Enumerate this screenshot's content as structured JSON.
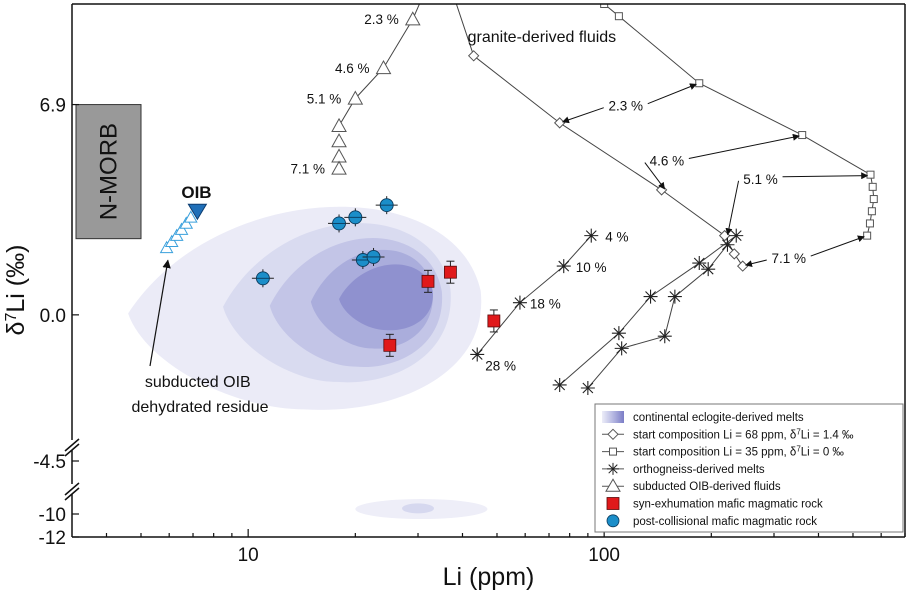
{
  "chart_data": {
    "type": "scatter",
    "title": "",
    "xlabel": "Li (ppm)",
    "ylabel": "δ7Li (‰)",
    "x_scale": "log",
    "xlim": [
      3.2,
      700
    ],
    "x_ticks": [
      10,
      100
    ],
    "ylim_upper": [
      -4.5,
      10.2
    ],
    "y_ticks_upper": [
      6.9,
      0.0,
      -4.5
    ],
    "ylim_lower": [
      -12,
      -9
    ],
    "y_ticks_lower": [
      -10,
      -12
    ],
    "axis_break": true,
    "nmorb_box": {
      "label": "N-MORB",
      "x_range": [
        3.2,
        5.0
      ],
      "y_range": [
        2.5,
        6.9
      ]
    },
    "oib_label": "OIB",
    "oib_point": {
      "x": 7.2,
      "y": 3.4
    },
    "subducted_oib_dehydrated_residue": [
      {
        "x": 5.9,
        "y": 2.2
      },
      {
        "x": 6.1,
        "y": 2.4
      },
      {
        "x": 6.3,
        "y": 2.6
      },
      {
        "x": 6.5,
        "y": 2.8
      },
      {
        "x": 6.7,
        "y": 3.0
      },
      {
        "x": 6.9,
        "y": 3.2
      }
    ],
    "annotation_residue": "subducted OIB\ndehydrated residue",
    "annotation_granite": "granite-derived fluids",
    "continental_eclogite_melts_density": {
      "levels": [
        {
          "x_range": [
            4.6,
            45
          ],
          "y_range": [
            -3.1,
            4.3
          ]
        },
        {
          "x_range": [
            8.5,
            37
          ],
          "y_range": [
            -2.2,
            3.6
          ]
        },
        {
          "x_range": [
            11.5,
            35
          ],
          "y_range": [
            -1.7,
            3.0
          ]
        },
        {
          "x_range": [
            15,
            33
          ],
          "y_range": [
            -1.1,
            2.5
          ]
        },
        {
          "x_range": [
            18,
            33
          ],
          "y_range": [
            -0.5,
            1.9
          ]
        }
      ],
      "lower_blob": {
        "x_range": [
          20,
          47
        ],
        "y_range": [
          -10.1,
          -9.6
        ]
      }
    },
    "series": [
      {
        "name": "subducted OIB-derived fluids",
        "marker": "triangle",
        "points": [
          {
            "x": 29,
            "y": 9.7,
            "label": "2.3 %"
          },
          {
            "x": 24,
            "y": 8.1,
            "label": "4.6 %"
          },
          {
            "x": 20,
            "y": 7.1,
            "label": "5.1 %"
          },
          {
            "x": 18,
            "y": 6.2,
            "label": ""
          },
          {
            "x": 18,
            "y": 5.7,
            "label": ""
          },
          {
            "x": 18,
            "y": 5.2,
            "label": ""
          },
          {
            "x": 18,
            "y": 4.8,
            "label": "7.1 %"
          }
        ]
      },
      {
        "name": "start composition Li = 68 ppm, δ7Li = 1.4 ‰",
        "marker": "diamond",
        "points": [
          {
            "x": 43,
            "y": 8.5
          },
          {
            "x": 75,
            "y": 6.3
          },
          {
            "x": 145,
            "y": 4.1
          },
          {
            "x": 218,
            "y": 2.6
          },
          {
            "x": 232,
            "y": 2.0
          },
          {
            "x": 245,
            "y": 1.6
          }
        ]
      },
      {
        "name": "start composition Li = 35 ppm, δ7Li = 0 ‰",
        "marker": "square",
        "points": [
          {
            "x": 100,
            "y": 10.2
          },
          {
            "x": 110,
            "y": 9.8
          },
          {
            "x": 185,
            "y": 7.6
          },
          {
            "x": 360,
            "y": 5.9
          },
          {
            "x": 560,
            "y": 4.6
          },
          {
            "x": 568,
            "y": 4.2
          },
          {
            "x": 572,
            "y": 3.8
          },
          {
            "x": 565,
            "y": 3.4
          },
          {
            "x": 558,
            "y": 3.0
          },
          {
            "x": 548,
            "y": 2.6
          }
        ]
      },
      {
        "name": "orthogneiss-derived melts",
        "marker": "asterisk",
        "points": [
          {
            "x": 44,
            "y": -1.3,
            "label": "28 %"
          },
          {
            "x": 58,
            "y": 0.4,
            "label": "18 %"
          },
          {
            "x": 77,
            "y": 1.6,
            "label": "10 %"
          },
          {
            "x": 92,
            "y": 2.6,
            "label": "4 %"
          },
          {
            "x": 75,
            "y": -2.3
          },
          {
            "x": 110,
            "y": -0.6
          },
          {
            "x": 135,
            "y": 0.6
          },
          {
            "x": 185,
            "y": 1.7
          },
          {
            "x": 235,
            "y": 2.6
          },
          {
            "x": 90,
            "y": -2.4
          },
          {
            "x": 112,
            "y": -1.1
          },
          {
            "x": 148,
            "y": -0.7
          },
          {
            "x": 158,
            "y": 0.6
          },
          {
            "x": 196,
            "y": 1.5
          },
          {
            "x": 222,
            "y": 2.3
          }
        ]
      },
      {
        "name": "syn-exhumation mafic magmatic rock",
        "marker": "square-filled",
        "color": "#e0191b",
        "points": [
          {
            "x": 25,
            "y": -1.0
          },
          {
            "x": 32,
            "y": 1.1
          },
          {
            "x": 37,
            "y": 1.4
          },
          {
            "x": 49,
            "y": -0.2
          }
        ]
      },
      {
        "name": "post-collisional mafic magmatic rock",
        "marker": "circle-filled",
        "color": "#1b8ec9",
        "points": [
          {
            "x": 11,
            "y": 1.2
          },
          {
            "x": 18,
            "y": 3.0
          },
          {
            "x": 20,
            "y": 3.2
          },
          {
            "x": 24.5,
            "y": 3.6
          },
          {
            "x": 21,
            "y": 1.8
          },
          {
            "x": 22.5,
            "y": 1.9
          }
        ]
      }
    ],
    "arrow_labels": [
      {
        "text": "2.3 %",
        "x": 115,
        "y": 6.7
      },
      {
        "text": "4.6 %",
        "x": 150,
        "y": 4.9
      },
      {
        "text": "5.1 %",
        "x": 275,
        "y": 4.3
      },
      {
        "text": "7.1 %",
        "x": 330,
        "y": 1.7
      }
    ],
    "legend": {
      "position": "bottom-right",
      "entries": [
        {
          "marker": "gradient",
          "label": "continental eclogite-derived melts"
        },
        {
          "marker": "diamond",
          "label": "start composition Li = 68 ppm, δ7Li = 1.4 ‰"
        },
        {
          "marker": "square",
          "label": "start composition Li = 35 ppm, δ7Li = 0 ‰"
        },
        {
          "marker": "asterisk",
          "label": "orthogneiss-derived melts"
        },
        {
          "marker": "triangle",
          "label": "subducted OIB-derived fluids"
        },
        {
          "marker": "square-filled",
          "color": "#e0191b",
          "label": "syn-exhumation mafic magmatic rock"
        },
        {
          "marker": "circle-filled",
          "color": "#1b8ec9",
          "label": "post-collisional mafic magmatic rock"
        }
      ]
    },
    "colors": {
      "density_fill": "#9d9fd6",
      "nmorb_fill": "#999999",
      "oib_blue": "#1f6fb8",
      "residue_cyan": "#3aa0dc",
      "red": "#e0191b",
      "blue": "#1b8ec9"
    }
  }
}
